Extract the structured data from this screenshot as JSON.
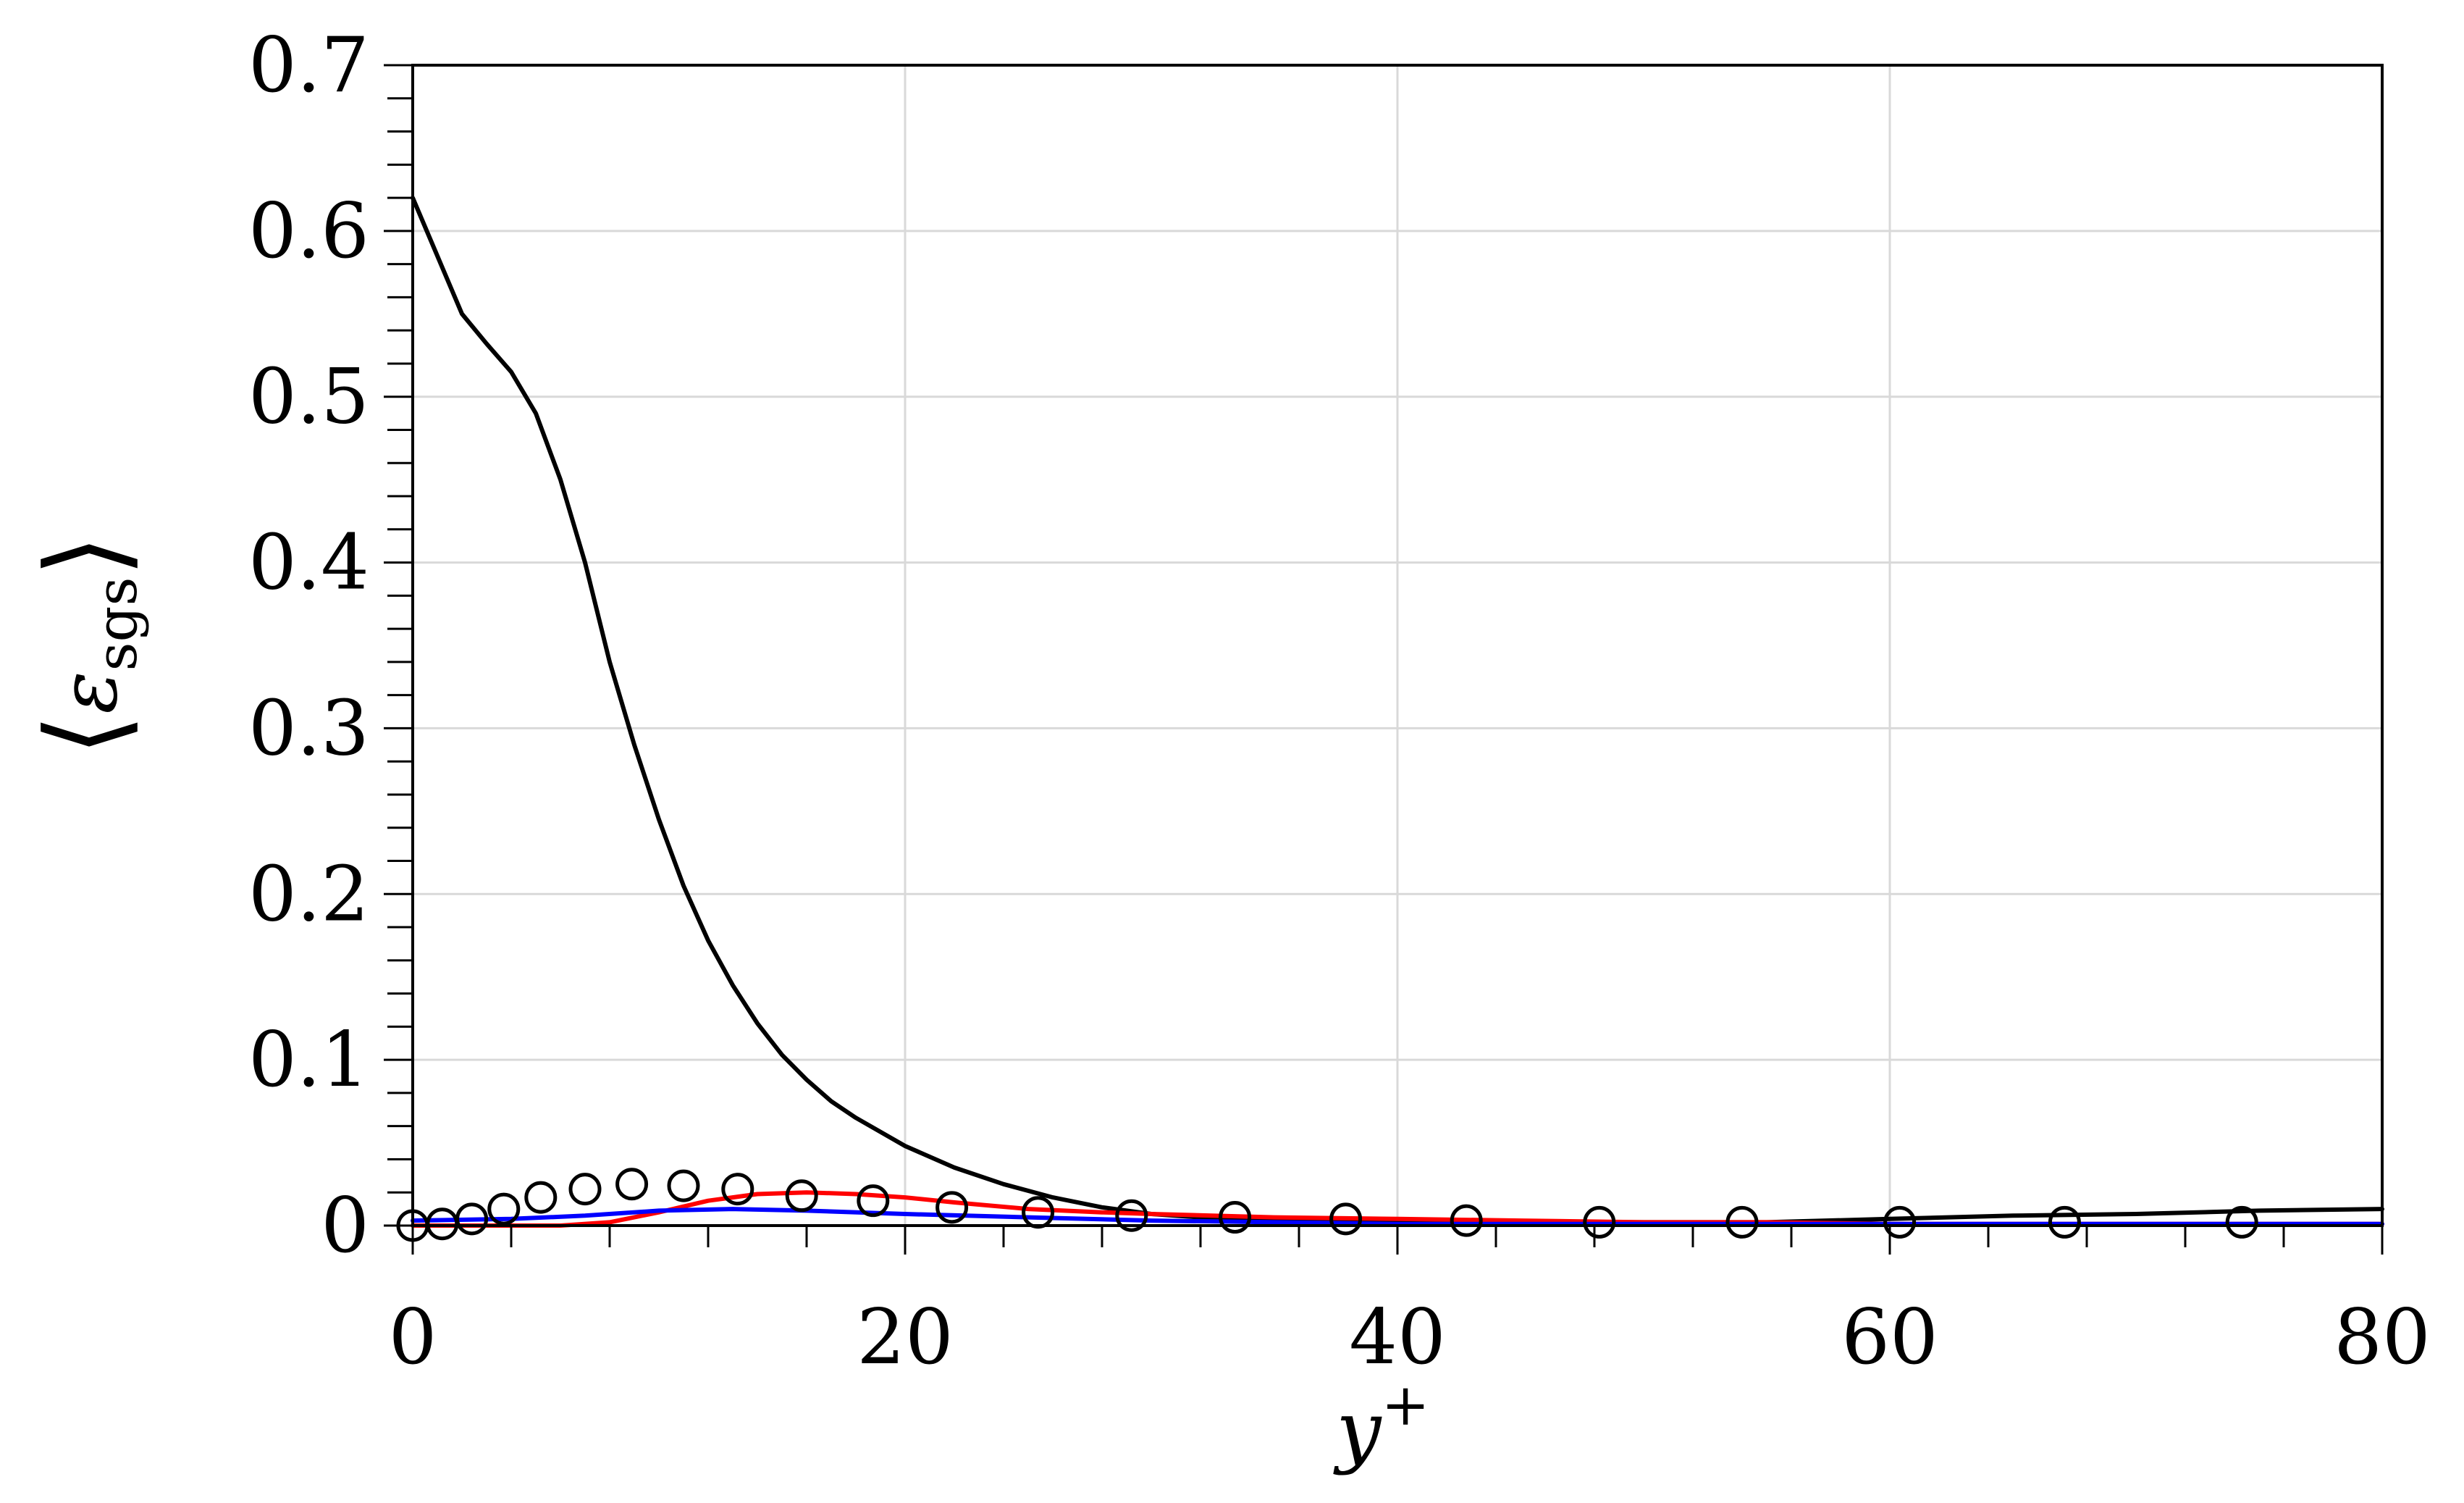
{
  "chart_data": {
    "type": "line",
    "title": "",
    "xlabel": "y",
    "xlabel_sup": "+",
    "ylabel_open": "⟨",
    "ylabel_symbol": "ε",
    "ylabel_sub": "sgs",
    "ylabel_close": "⟩",
    "xlim": [
      0,
      80
    ],
    "ylim": [
      0,
      0.7
    ],
    "x_ticks": [
      0,
      20,
      40,
      60,
      80
    ],
    "x_tick_labels": [
      "0",
      "20",
      "40",
      "60",
      "80"
    ],
    "y_ticks": [
      0,
      0.1,
      0.2,
      0.3,
      0.4,
      0.5,
      0.6,
      0.7
    ],
    "y_tick_labels": [
      "0",
      "0.1",
      "0.2",
      "0.3",
      "0.4",
      "0.5",
      "0.6",
      "0.7"
    ],
    "x_minor_step": 4,
    "y_minor_step": 0.02,
    "grid": true,
    "legend": "none",
    "series": [
      {
        "style": "line",
        "color": "#000000",
        "x": [
          0,
          1,
          2,
          3,
          4,
          5,
          6,
          7,
          8,
          9,
          10,
          11,
          12,
          13,
          14,
          15,
          16,
          17,
          18,
          20,
          22,
          24,
          26,
          28,
          30,
          32,
          34,
          36,
          40,
          45,
          50,
          55,
          60,
          65,
          70,
          75,
          80
        ],
        "y": [
          0.62,
          0.585,
          0.55,
          0.532,
          0.515,
          0.49,
          0.45,
          0.4,
          0.34,
          0.29,
          0.245,
          0.205,
          0.172,
          0.145,
          0.122,
          0.103,
          0.088,
          0.075,
          0.065,
          0.048,
          0.035,
          0.025,
          0.017,
          0.011,
          0.007,
          0.005,
          0.004,
          0.003,
          0.002,
          0.002,
          0.002,
          0.002,
          0.004,
          0.006,
          0.007,
          0.009,
          0.01
        ]
      },
      {
        "style": "line",
        "color": "#ff0000",
        "x": [
          0,
          4,
          6,
          8,
          10,
          12,
          14,
          16,
          18,
          20,
          22,
          25,
          28,
          30,
          35,
          40,
          45,
          50,
          55,
          60,
          65,
          70,
          75,
          80
        ],
        "y": [
          0,
          0,
          0,
          0.002,
          0.008,
          0.015,
          0.019,
          0.02,
          0.019,
          0.017,
          0.014,
          0.01,
          0.008,
          0.007,
          0.005,
          0.004,
          0.003,
          0.002,
          0.002,
          0.001,
          0.001,
          0.001,
          0.001,
          0.001
        ]
      },
      {
        "style": "line",
        "color": "#0000ff",
        "x": [
          0,
          4,
          7,
          10,
          13,
          16,
          20,
          25,
          30,
          40,
          50,
          60,
          70,
          80
        ],
        "y": [
          0.003,
          0.004,
          0.006,
          0.009,
          0.01,
          0.009,
          0.007,
          0.005,
          0.003,
          0.001,
          0.001,
          0.001,
          0.001,
          0.001
        ]
      },
      {
        "style": "markers",
        "marker": "open-circle",
        "color": "#000000",
        "x": [
          0,
          1.2,
          2.4,
          3.7,
          5.2,
          7,
          8.9,
          11,
          13.2,
          15.8,
          18.7,
          21.9,
          25.4,
          29.2,
          33.4,
          37.9,
          42.8,
          48.2,
          54,
          60.4,
          67.1,
          74.3
        ],
        "y": [
          0,
          0.001,
          0.004,
          0.01,
          0.017,
          0.022,
          0.025,
          0.024,
          0.022,
          0.018,
          0.015,
          0.011,
          0.008,
          0.006,
          0.005,
          0.004,
          0.003,
          0.002,
          0.002,
          0.002,
          0.002,
          0.002
        ]
      }
    ]
  }
}
